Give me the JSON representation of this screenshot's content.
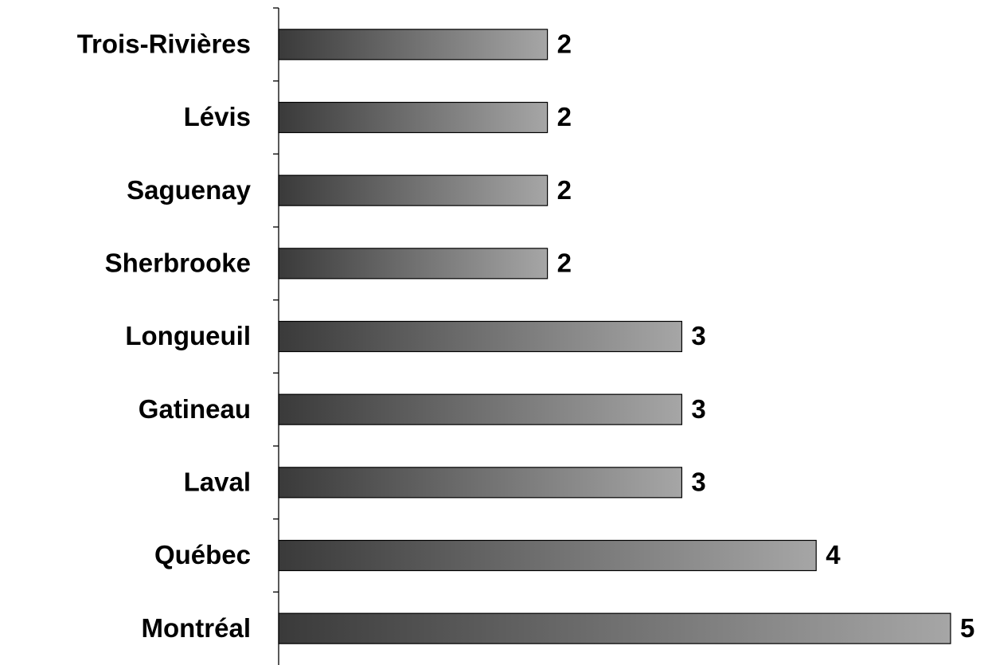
{
  "chart_data": {
    "type": "bar",
    "orientation": "horizontal",
    "categories": [
      "Trois-Rivières",
      "Lévis",
      "Saguenay",
      "Sherbrooke",
      "Longueuil",
      "Gatineau",
      "Laval",
      "Québec",
      "Montréal"
    ],
    "values": [
      2,
      2,
      2,
      2,
      3,
      3,
      3,
      4,
      5
    ],
    "color": [
      "#3a3a3a",
      "#a6a6a6"
    ]
  }
}
